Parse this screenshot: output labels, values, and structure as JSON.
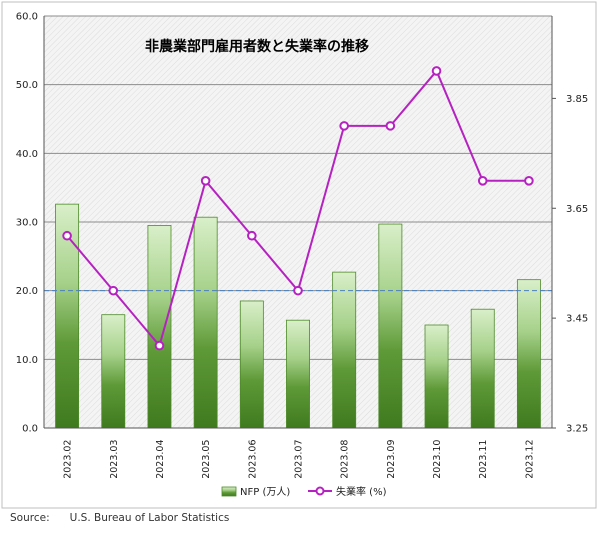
{
  "chart_data": {
    "type": "bar+line",
    "title": "非農業部門雇用者数と失業率の推移",
    "categories": [
      "2023.02",
      "2023.03",
      "2023.04",
      "2023.05",
      "2023.06",
      "2023.07",
      "2023.08",
      "2023.09",
      "2023.10",
      "2023.11",
      "2023.12"
    ],
    "series": [
      {
        "name": "NFP (万人)",
        "type": "bar",
        "axis": "left",
        "values": [
          32.6,
          16.5,
          29.5,
          30.7,
          18.5,
          15.7,
          22.7,
          29.7,
          15.0,
          17.3,
          21.6
        ]
      },
      {
        "name": "失業率 (%)",
        "type": "line",
        "axis": "right",
        "values": [
          3.6,
          3.5,
          3.4,
          3.7,
          3.6,
          3.5,
          3.8,
          3.8,
          3.9,
          3.7,
          3.7
        ]
      }
    ],
    "y_left": {
      "min": 0,
      "max": 60,
      "ticks": [
        "0.0",
        "10.0",
        "20.0",
        "30.0",
        "40.0",
        "50.0",
        "60.0"
      ]
    },
    "y_right": {
      "min": 3.25,
      "max": 4.0,
      "ticks": [
        "3.25",
        "3.45",
        "3.65",
        "3.85"
      ]
    },
    "reference_line": {
      "axis": "left",
      "value": 20
    },
    "grid": true,
    "legend": "bottom"
  },
  "colors": {
    "bar_dark": "#3f7a1f",
    "bar_light": "#d9efc9",
    "bar_border": "#4e8a2a",
    "line": "#b522c0",
    "reference": "#4a7fc0"
  },
  "source": {
    "label": "Source:",
    "text": "U.S. Bureau of Labor Statistics"
  }
}
